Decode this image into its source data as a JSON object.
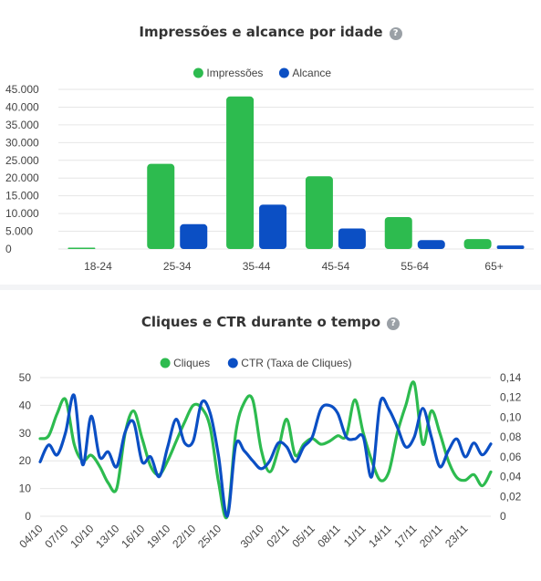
{
  "colors": {
    "green": "#2dbb4f",
    "blue": "#0b4fc4",
    "grid": "#e6e6e6"
  },
  "chart_data": [
    {
      "type": "bar",
      "title": "Impressões e alcance por idade",
      "help_icon": "question-circle-icon",
      "categories": [
        "18-24",
        "25-34",
        "35-44",
        "45-54",
        "55-64",
        "65+"
      ],
      "series": [
        {
          "name": "Impressões",
          "color": "#2dbb4f",
          "values": [
            350,
            24000,
            43000,
            20500,
            9000,
            2800
          ]
        },
        {
          "name": "Alcance",
          "color": "#0b4fc4",
          "values": [
            0,
            7000,
            12500,
            5800,
            2500,
            1000
          ]
        }
      ],
      "ylim": [
        0,
        45000
      ],
      "yticks": [
        "0",
        "5.000",
        "10.000",
        "15.000",
        "20.000",
        "25.000",
        "30.000",
        "35.000",
        "40.000",
        "45.000"
      ],
      "legend": "top",
      "grid": true
    },
    {
      "type": "line",
      "title": "Cliques e CTR durante o tempo",
      "help_icon": "question-circle-icon",
      "x": [
        "04/10",
        "05/10",
        "06/10",
        "07/10",
        "08/10",
        "09/10",
        "10/10",
        "11/10",
        "12/10",
        "13/10",
        "14/10",
        "15/10",
        "16/10",
        "17/10",
        "18/10",
        "19/10",
        "20/10",
        "21/10",
        "22/10",
        "23/10",
        "24/10",
        "25/10",
        "26/10",
        "27/10",
        "28/10",
        "29/10",
        "30/10",
        "31/10",
        "01/11",
        "02/11",
        "03/11",
        "04/11",
        "05/11",
        "06/11",
        "07/11",
        "08/11",
        "09/11",
        "10/11",
        "11/11",
        "12/11",
        "13/11",
        "14/11",
        "15/11",
        "16/11",
        "17/11",
        "18/11",
        "19/11",
        "20/11",
        "21/11",
        "22/11",
        "23/11",
        "24/11",
        "25/11",
        "26/11"
      ],
      "xticks": [
        "04/10",
        "07/10",
        "10/10",
        "13/10",
        "16/10",
        "19/10",
        "22/10",
        "25/10",
        "30/10",
        "02/11",
        "05/11",
        "08/11",
        "11/11",
        "14/11",
        "17/11",
        "20/11",
        "23/11"
      ],
      "series": [
        {
          "name": "Cliques",
          "color": "#2dbb4f",
          "axis": "left",
          "values": [
            28,
            29,
            37,
            42,
            26,
            20,
            22,
            18,
            12,
            10,
            30,
            38,
            28,
            18,
            15,
            20,
            27,
            34,
            40,
            39,
            32,
            12,
            0,
            30,
            41,
            42,
            24,
            16,
            24,
            35,
            22,
            26,
            28,
            26,
            27,
            29,
            29,
            42,
            30,
            20,
            13,
            16,
            30,
            40,
            48,
            26,
            38,
            30,
            20,
            14,
            13,
            15,
            11,
            16
          ]
        },
        {
          "name": "CTR (Taxa de Cliques)",
          "color": "#0b4fc4",
          "axis": "right",
          "values": [
            0.055,
            0.072,
            0.062,
            0.085,
            0.122,
            0.052,
            0.101,
            0.06,
            0.065,
            0.05,
            0.085,
            0.095,
            0.055,
            0.06,
            0.04,
            0.07,
            0.098,
            0.074,
            0.076,
            0.115,
            0.104,
            0.06,
            0.0,
            0.072,
            0.066,
            0.056,
            0.048,
            0.056,
            0.074,
            0.07,
            0.055,
            0.07,
            0.08,
            0.108,
            0.112,
            0.104,
            0.08,
            0.078,
            0.08,
            0.04,
            0.115,
            0.108,
            0.09,
            0.07,
            0.08,
            0.109,
            0.08,
            0.05,
            0.066,
            0.078,
            0.06,
            0.074,
            0.062,
            0.073
          ]
        }
      ],
      "ylim_left": [
        0,
        50
      ],
      "yticks_left": [
        "0",
        "10",
        "20",
        "30",
        "40",
        "50"
      ],
      "ylim_right": [
        0,
        0.14
      ],
      "yticks_right": [
        "0",
        "0,02",
        "0,04",
        "0,06",
        "0,08",
        "0,10",
        "0,12",
        "0,14"
      ],
      "legend": "top",
      "grid": true
    }
  ]
}
